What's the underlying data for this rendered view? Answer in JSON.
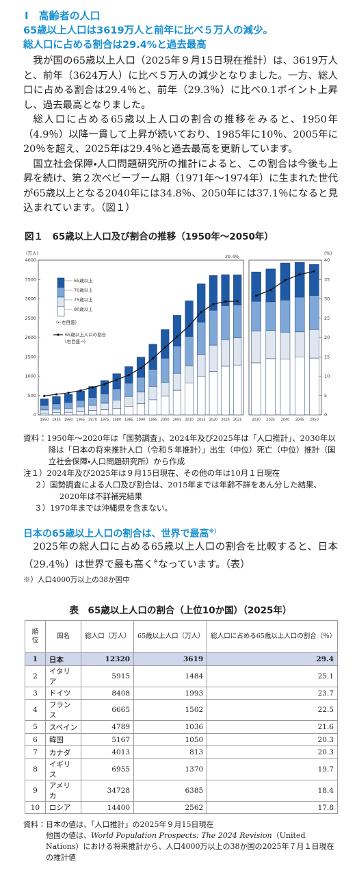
{
  "header": {
    "section": "Ⅰ　高齢者の人口",
    "highlights": [
      "65歳以上人口は3619万人と前年に比べ５万人の減少。",
      "総人口に占める割合は29.4%と過去最高"
    ]
  },
  "paragraphs": [
    "我が国の65歳以上人口（2025年９月15日現在推計）は、3619万人と、前年（3624万人）に比べ５万人の減少となりました。一方、総人口に占める割合は29.4％と、前年（29.3％）に比べ0.1ポイント上昇し、過去最高となりました。",
    "総人口に占める65歳以上人口の割合の推移をみると、1950年（4.9％）以降一貫して上昇が続いており、1985年に10％、2005年に20％を超え、2025年は29.4％と過去最高を更新しています。",
    "国立社会保障・人口問題研究所の推計によると、この割合は今後も上昇を続け、第２次ベビーブーム期（1971年～1974年）に生まれた世代が65歳以上となる2040年には34.8％、2050年には37.1％になると見込まれています。（図１）"
  ],
  "figure": {
    "title": "図１　65歳以上人口及び割合の推移（1950年～2050年）"
  },
  "chart_data": {
    "type": "stacked_bar_line",
    "y_label": "(万人)",
    "y2_label": "(%)",
    "annotation": "29.4％",
    "legend_notes": [
      "(←左目盛)",
      "(右目盛→)"
    ],
    "categories": [
      "1950",
      "1955",
      "1960",
      "1965",
      "1970",
      "1975",
      "1980",
      "1985",
      "1990",
      "1995",
      "2000",
      "2005",
      "2010",
      "2015",
      "2020",
      "2024",
      "2025",
      "2030",
      "2035",
      "2040",
      "2045",
      "2050"
    ],
    "ylim": [
      0,
      4000
    ],
    "yticks": [
      0,
      500,
      1000,
      1500,
      2000,
      2500,
      3000,
      3500,
      4000
    ],
    "y2lim": [
      0,
      40
    ],
    "y2ticks": [
      0,
      5,
      10,
      15,
      20,
      25,
      30,
      35,
      40
    ],
    "series": [
      {
        "name": "65歳以上",
        "color": "#1f5aa6",
        "values": [
          166,
          190,
          214,
          245,
          285,
          345,
          390,
          430,
          520,
          650,
          740,
          800,
          920,
          990,
          900,
          800,
          780,
          760,
          850,
          960,
          900,
          800
        ]
      },
      {
        "name": "70歳以上",
        "color": "#7fa8d8",
        "values": [
          119,
          140,
          150,
          171,
          200,
          240,
          290,
          340,
          385,
          440,
          620,
          700,
          760,
          830,
          900,
          880,
          850,
          770,
          740,
          830,
          900,
          880
        ]
      },
      {
        "name": "75歳以上",
        "color": "#dfe6ef",
        "values": [
          80,
          87,
          104,
          120,
          134,
          169,
          221,
          260,
          300,
          347,
          358,
          440,
          442,
          565,
          680,
          686,
          700,
          820,
          730,
          700,
          645,
          740
        ]
      },
      {
        "name": "80歳以上",
        "color": "#ffffff",
        "values": [
          46,
          58,
          67,
          82,
          114,
          133,
          164,
          217,
          288,
          391,
          486,
          636,
          826,
          1002,
          1123,
          1258,
          1289,
          1346,
          1453,
          1438,
          1500,
          1468
        ]
      },
      {
        "name": "65歳以上人口の割合",
        "color": "#111111",
        "axis": "y2",
        "values": [
          4.9,
          5.3,
          5.7,
          6.3,
          7.1,
          7.9,
          9.1,
          10.3,
          12.1,
          14.6,
          17.4,
          20.2,
          23.0,
          26.6,
          28.6,
          29.3,
          29.4,
          30.8,
          32.3,
          34.8,
          36.3,
          37.1
        ]
      }
    ]
  },
  "figure_notes": [
    "資料：1950年～2020年は「国勢調査」、2024年及び2025年は「人口推計」、2030年以降は「日本の将来推計人口（令和５年推計）」出生（中位）死亡（中位）推計（国立社会保障・人口問題研究所）から作成",
    "注１）2024年及び2025年は９月15日現在、その他の年は10月１日現在",
    "２）国勢調査による人口及び割合は、2015年までは年齢不詳をあん分した結果、2020年は不詳補完結果",
    "３）1970年までは沖縄県を含まない。"
  ],
  "section2": {
    "heading": "日本の65歳以上人口の割合は、世界で最高",
    "heading_note": "※）",
    "paragraph": [
      "2025年の総人口に占める65歳以上人口の割合を比較すると、日本（29.4％）は世界で最も高く",
      "※",
      "なっています。（表）"
    ],
    "footnote": "※）人口4000万以上の38か国中"
  },
  "table": {
    "title": "表　65歳以上人口の割合（上位10か国）（2025年）",
    "header": [
      "順位",
      "国名",
      "総人口（万人）",
      "65歳以上人口（万人）",
      "総人口に占める65歳以上人口の割合（％）"
    ],
    "rows": [
      [
        1,
        "日本",
        12320,
        3619,
        29.4
      ],
      [
        2,
        "イタリア",
        5915,
        1484,
        25.1
      ],
      [
        3,
        "ドイツ",
        8408,
        1993,
        23.7
      ],
      [
        4,
        "フランス",
        6665,
        1502,
        22.5
      ],
      [
        5,
        "スペイン",
        4789,
        1036,
        21.6
      ],
      [
        6,
        "韓国",
        5167,
        1050,
        20.3
      ],
      [
        7,
        "カナダ",
        4013,
        813,
        20.3
      ],
      [
        8,
        "イギリス",
        6955,
        1370,
        19.7
      ],
      [
        9,
        "アメリカ",
        34728,
        6385,
        18.4
      ],
      [
        10,
        "ロシア",
        14400,
        2562,
        17.8
      ]
    ]
  },
  "table_source": [
    "資料：日本の値は、「人口推計」の2025年９月15日現在",
    "他国の値は、",
    "World Population Prospects: The 2024 Revision",
    "（United Nations）における将来推計から、人口4000万以上の38か国の2025年７月１日現在の推計値"
  ]
}
